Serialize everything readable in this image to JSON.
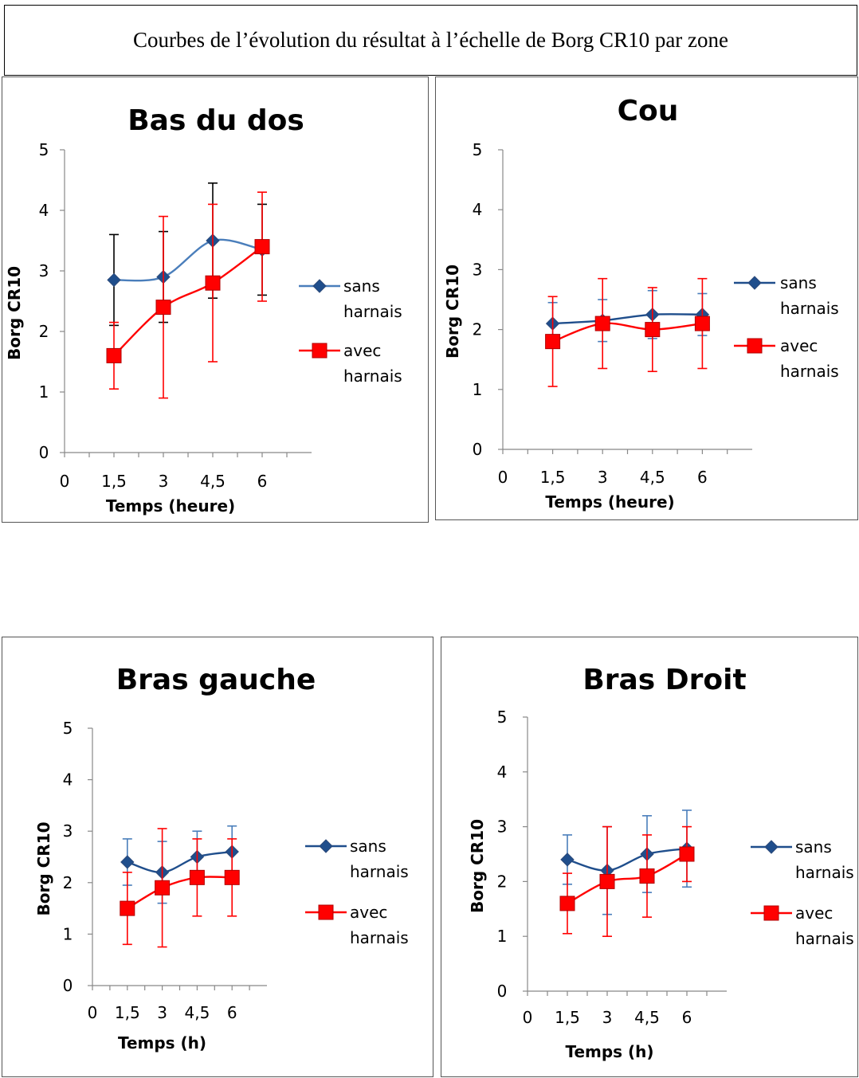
{
  "caption": "Courbes de l’évolution du résultat à l’échelle de Borg CR10 par zone",
  "colors": {
    "sans": "#1f4e8c",
    "sans_light": "#4a7ebb",
    "avec": "#ff0000"
  },
  "chart_data": [
    {
      "type": "line",
      "title": "Bas du dos",
      "xlabel": "Temps (heure)",
      "ylabel": "Borg CR10",
      "x_ticks": [
        "0",
        "1,5",
        "3",
        "4,5",
        "6"
      ],
      "y_ticks": [
        "0",
        "1",
        "2",
        "3",
        "4",
        "5"
      ],
      "xlim": [
        0,
        7.5
      ],
      "ylim": [
        0,
        5
      ],
      "legend": "right",
      "x": [
        1.5,
        3,
        4.5,
        6
      ],
      "series": [
        {
          "name": "sans harnais",
          "values": [
            2.85,
            2.9,
            3.5,
            3.35
          ],
          "err_low": [
            0.75,
            0.75,
            0.95,
            0.75
          ],
          "err_high": [
            0.75,
            0.75,
            0.95,
            0.75
          ]
        },
        {
          "name": "avec harnais",
          "values": [
            1.6,
            2.4,
            2.8,
            3.4
          ],
          "err_low": [
            0.55,
            1.5,
            1.3,
            0.9
          ],
          "err_high": [
            0.55,
            1.5,
            1.3,
            0.9
          ]
        }
      ]
    },
    {
      "type": "line",
      "title": "Cou",
      "xlabel": "Temps (heure)",
      "ylabel": "Borg CR10",
      "x_ticks": [
        "0",
        "1,5",
        "3",
        "4,5",
        "6"
      ],
      "y_ticks": [
        "0",
        "1",
        "2",
        "3",
        "4",
        "5"
      ],
      "xlim": [
        0,
        7.5
      ],
      "ylim": [
        0,
        5
      ],
      "legend": "right",
      "x": [
        1.5,
        3,
        4.5,
        6
      ],
      "series": [
        {
          "name": "sans harnais",
          "values": [
            2.1,
            2.15,
            2.25,
            2.25
          ],
          "err_low": [
            0.35,
            0.35,
            0.4,
            0.35
          ],
          "err_high": [
            0.35,
            0.35,
            0.4,
            0.35
          ]
        },
        {
          "name": "avec harnais",
          "values": [
            1.8,
            2.1,
            2.0,
            2.1
          ],
          "err_low": [
            0.75,
            0.75,
            0.7,
            0.75
          ],
          "err_high": [
            0.75,
            0.75,
            0.7,
            0.75
          ]
        }
      ]
    },
    {
      "type": "line",
      "title": "Bras gauche",
      "xlabel": "Temps (h)",
      "ylabel": "Borg CR10",
      "x_ticks": [
        "0",
        "1,5",
        "3",
        "4,5",
        "6"
      ],
      "y_ticks": [
        "0",
        "1",
        "2",
        "3",
        "4",
        "5"
      ],
      "xlim": [
        0,
        7.5
      ],
      "ylim": [
        0,
        5
      ],
      "legend": "right",
      "x": [
        1.5,
        3,
        4.5,
        6
      ],
      "series": [
        {
          "name": "sans harnais",
          "values": [
            2.4,
            2.2,
            2.5,
            2.6
          ],
          "err_low": [
            0.45,
            0.6,
            0.5,
            0.5
          ],
          "err_high": [
            0.45,
            0.6,
            0.5,
            0.5
          ]
        },
        {
          "name": "avec harnais",
          "values": [
            1.5,
            1.9,
            2.1,
            2.1
          ],
          "err_low": [
            0.7,
            1.15,
            0.75,
            0.75
          ],
          "err_high": [
            0.7,
            1.15,
            0.75,
            0.75
          ]
        }
      ]
    },
    {
      "type": "line",
      "title": "Bras Droit",
      "xlabel": "Temps (h)",
      "ylabel": "Borg CR10",
      "x_ticks": [
        "0",
        "1,5",
        "3",
        "4,5",
        "6"
      ],
      "y_ticks": [
        "0",
        "1",
        "2",
        "3",
        "4",
        "5"
      ],
      "xlim": [
        0,
        7.5
      ],
      "ylim": [
        0,
        5
      ],
      "legend": "right",
      "x": [
        1.5,
        3,
        4.5,
        6
      ],
      "series": [
        {
          "name": "sans harnais",
          "values": [
            2.4,
            2.2,
            2.5,
            2.6
          ],
          "err_low": [
            0.45,
            0.8,
            0.7,
            0.7
          ],
          "err_high": [
            0.45,
            0.8,
            0.7,
            0.7
          ]
        },
        {
          "name": "avec harnais",
          "values": [
            1.6,
            2.0,
            2.1,
            2.5
          ],
          "err_low": [
            0.55,
            1.0,
            0.75,
            0.5
          ],
          "err_high": [
            0.55,
            1.0,
            0.75,
            0.5
          ]
        }
      ]
    }
  ]
}
